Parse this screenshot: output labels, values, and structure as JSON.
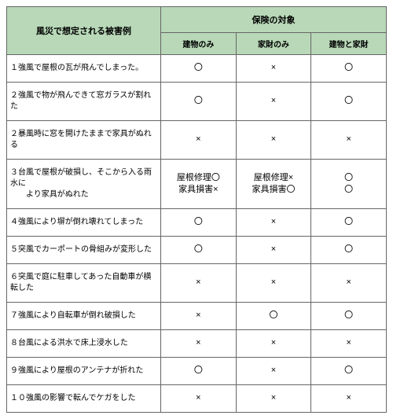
{
  "table": {
    "header_bg": "#b8d8b8",
    "border_color": "#666666",
    "left_header": "風災で想定される被害例",
    "top_header": "保険の対象",
    "sub_headers": [
      "建物のみ",
      "家財のみ",
      "建物と家財"
    ],
    "rows": [
      {
        "label": "１強風で屋根の瓦が飛んでしまった。",
        "cells": [
          "〇",
          "×",
          "〇"
        ]
      },
      {
        "label": "２強風で物が飛んできて窓ガラスが割れた",
        "cells": [
          "〇",
          "×",
          "〇"
        ]
      },
      {
        "label": "２暴風時に窓を開けたままで家具がぬれる",
        "cells": [
          "×",
          "×",
          "×"
        ]
      },
      {
        "label": "３台風で屋根が破損し、そこから入る雨水に\n　　より家具がぬれた",
        "cells": [
          "屋根修理〇\n家具損害×",
          "屋根修理×\n家具損害〇",
          "〇\n〇"
        ]
      },
      {
        "label": "４強風により塀が倒れ壊れてしまった",
        "cells": [
          "〇",
          "×",
          "〇"
        ]
      },
      {
        "label": "５突風でカーポートの骨組みが変形した",
        "cells": [
          "〇",
          "×",
          "〇"
        ]
      },
      {
        "label": "６突風で庭に駐車してあった自動車が横転した",
        "cells": [
          "×",
          "×",
          "×"
        ]
      },
      {
        "label": "７強風により自転車が倒れ破損した",
        "cells": [
          "×",
          "〇",
          "〇"
        ]
      },
      {
        "label": "８台風による洪水で床上浸水した",
        "cells": [
          "×",
          "×",
          "×"
        ]
      },
      {
        "label": "９強風により屋根のアンテナが折れた",
        "cells": [
          "〇",
          "×",
          "〇"
        ]
      },
      {
        "label": "１０強風の影響で転んでケガをした",
        "cells": [
          "×",
          "×",
          "×"
        ]
      }
    ]
  }
}
